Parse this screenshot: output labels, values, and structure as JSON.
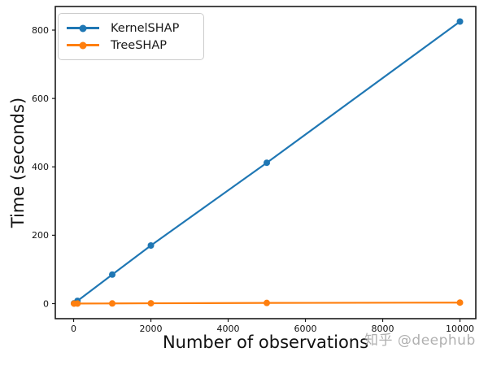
{
  "figure": {
    "background": "#ffffff",
    "watermark": "知乎 @deephub"
  },
  "chart_data": {
    "type": "line",
    "title": "",
    "xlabel": "Number of observations",
    "ylabel": "Time (seconds)",
    "x": [
      10,
      100,
      1000,
      2000,
      5000,
      10000
    ],
    "series": [
      {
        "name": "KernelSHAP",
        "color": "#1f77b4",
        "values": [
          1,
          8,
          85,
          170,
          412,
          825
        ]
      },
      {
        "name": "TreeSHAP",
        "color": "#ff7f0e",
        "values": [
          0.1,
          0.2,
          0.5,
          1,
          2,
          3
        ]
      }
    ],
    "x_ticks": [
      0,
      2000,
      4000,
      6000,
      8000,
      10000
    ],
    "y_ticks": [
      0,
      200,
      400,
      600,
      800
    ],
    "xlim": [
      -474,
      10410
    ],
    "ylim": [
      -44,
      869
    ],
    "grid": false,
    "legend_position": "upper left",
    "marker": "circle",
    "axis_color": "#1a1a1a",
    "tick_label_color": "#111111"
  }
}
